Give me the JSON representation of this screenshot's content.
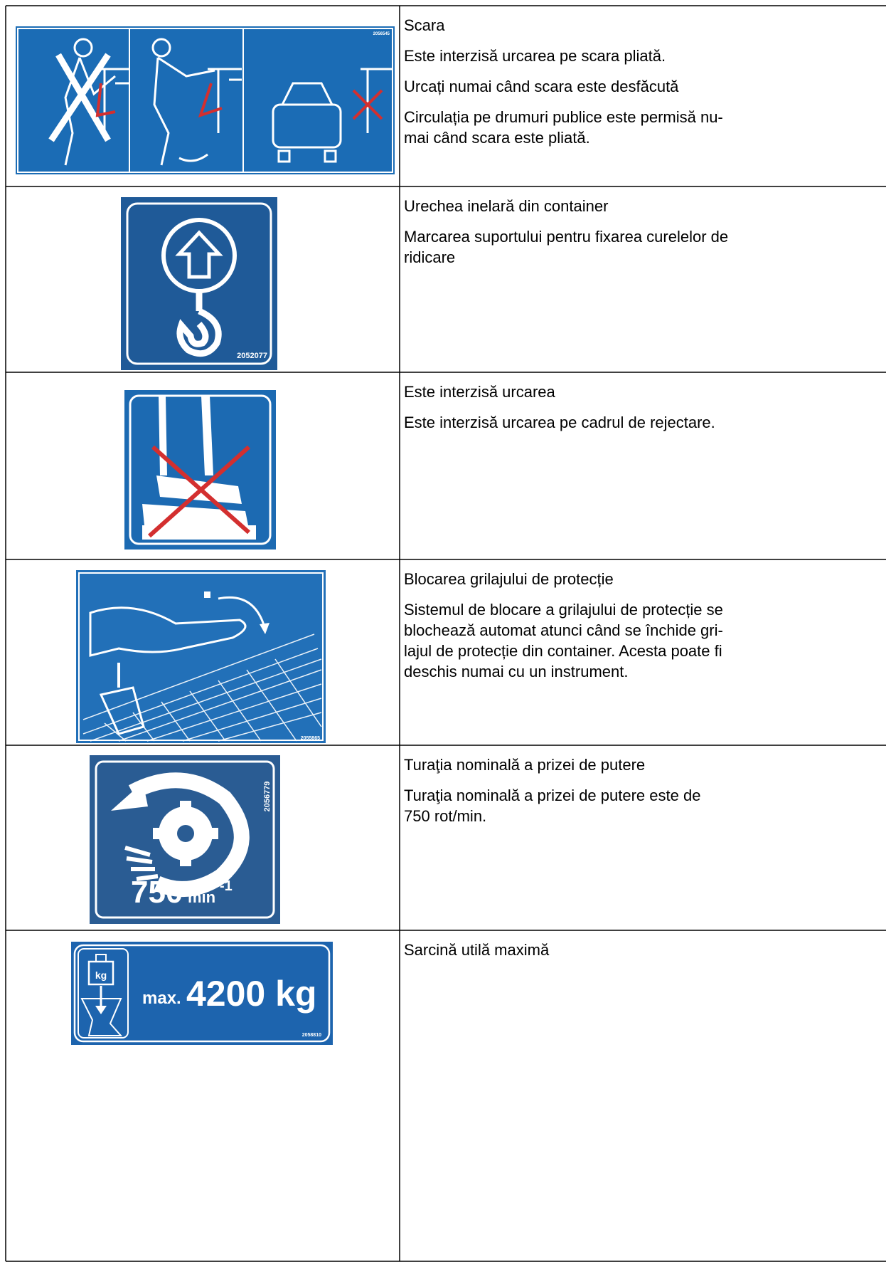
{
  "rows": [
    {
      "image": {
        "code": "2056545"
      },
      "title": "Scara",
      "paragraphs": [
        [
          "Este interzisă urcarea pe scara pliată."
        ],
        [
          "Urcați numai când scara este desfăcută"
        ],
        [
          "Circulația pe drumuri publice este permisă nu-",
          "mai când scara este pliată."
        ]
      ]
    },
    {
      "image": {
        "code": "2052077"
      },
      "title": "Urechea inelară din container",
      "paragraphs": [
        [
          "Marcarea suportului pentru fixarea curelelor de",
          "ridicare"
        ]
      ]
    },
    {
      "title": "Este interzisă urcarea",
      "paragraphs": [
        [
          "Este interzisă urcarea pe cadrul de rejectare."
        ]
      ]
    },
    {
      "image": {
        "code": "2055865"
      },
      "title": "Blocarea grilajului de protecție",
      "paragraphs": [
        [
          "Sistemul de blocare a grilajului de protecție se",
          "blochează automat atunci când se închide gri-",
          "lajul de protecție din container. Acesta poate fi",
          "deschis numai cu un instrument."
        ]
      ]
    },
    {
      "image": {
        "code": "2056779",
        "speed": "750",
        "unit": "min",
        "exponent": "-1"
      },
      "title": "Turaţia nominală a prizei de putere",
      "paragraphs": [
        [
          "Turaţia nominală a prizei de putere este de",
          "750 rot/min."
        ]
      ]
    },
    {
      "image": {
        "code": "2058810",
        "icon_label": "kg",
        "prefix": "max.",
        "load": "4200 kg"
      },
      "title": "Sarcină utilă maximă"
    }
  ]
}
